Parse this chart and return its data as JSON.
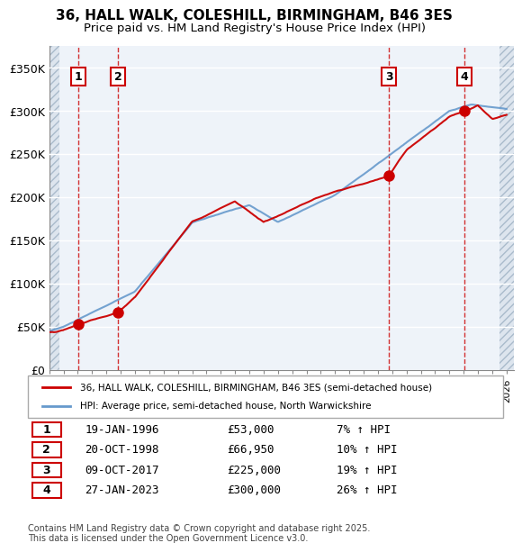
{
  "title_line1": "36, HALL WALK, COLESHILL, BIRMINGHAM, B46 3ES",
  "title_line2": "Price paid vs. HM Land Registry's House Price Index (HPI)",
  "ylabel": "",
  "xlabel": "",
  "yticks": [
    0,
    50000,
    100000,
    150000,
    200000,
    250000,
    300000,
    350000
  ],
  "ytick_labels": [
    "£0",
    "£50K",
    "£100K",
    "£150K",
    "£200K",
    "£250K",
    "£300K",
    "£350K"
  ],
  "xmin": 1994.0,
  "xmax": 2026.5,
  "ymin": 0,
  "ymax": 375000,
  "sale_dates": [
    1996.05,
    1998.81,
    2017.77,
    2023.07
  ],
  "sale_prices": [
    53000,
    66950,
    225000,
    300000
  ],
  "sale_labels": [
    "1",
    "2",
    "3",
    "4"
  ],
  "sale_info": [
    {
      "label": "1",
      "date": "19-JAN-1996",
      "price": "£53,000",
      "hpi": "7% ↑ HPI"
    },
    {
      "label": "2",
      "date": "20-OCT-1998",
      "price": "£66,950",
      "hpi": "10% ↑ HPI"
    },
    {
      "label": "3",
      "date": "09-OCT-2017",
      "price": "£225,000",
      "hpi": "19% ↑ HPI"
    },
    {
      "label": "4",
      "date": "27-JAN-2023",
      "price": "£300,000",
      "hpi": "26% ↑ HPI"
    }
  ],
  "line_color_price": "#cc0000",
  "line_color_hpi": "#6699cc",
  "bg_hatch_color": "#cccccc",
  "vline_color": "#cc0000",
  "label_box_color": "#cc0000",
  "legend_line1": "36, HALL WALK, COLESHILL, BIRMINGHAM, B46 3ES (semi-detached house)",
  "legend_line2": "HPI: Average price, semi-detached house, North Warwickshire",
  "footer": "Contains HM Land Registry data © Crown copyright and database right 2025.\nThis data is licensed under the Open Government Licence v3.0.",
  "plot_bg_color": "#eef3f9",
  "hatch_bg_color": "#dde5ee"
}
